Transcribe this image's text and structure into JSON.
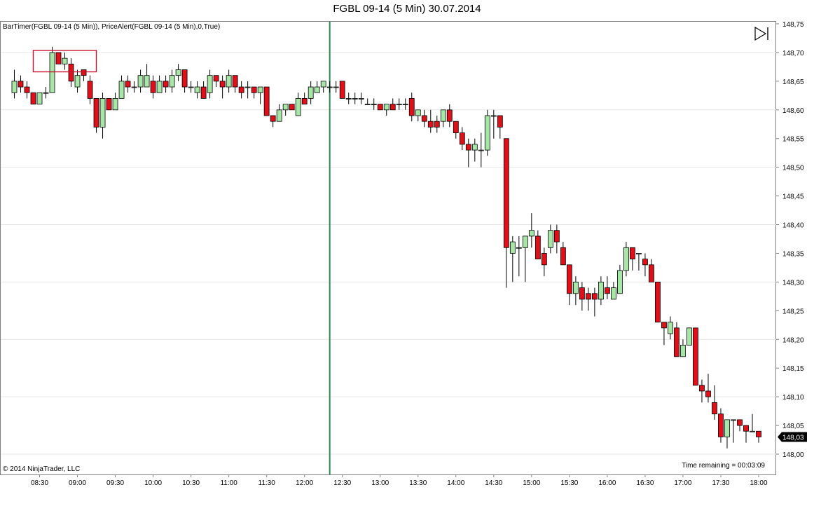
{
  "window": {
    "title": "FGBL 09-14 (5 Min)  30.07.2014",
    "indicators_label": "BarTimer(FGBL 09-14 (5 Min)), PriceAlert(FGBL 09-14 (5 Min),0,True)",
    "copyright": "© 2014 NinjaTrader, LLC",
    "time_remaining": "Time remaining = 00:03:09",
    "play_icon": "play-to-end-icon"
  },
  "colors": {
    "up_fill": "#a8e6a8",
    "down_fill": "#e0101a",
    "wick": "#000000",
    "grid": "#e6e6e6",
    "session_line": "#2e8b57",
    "alert_box": "#c8102e",
    "last_price_bg": "#000000"
  },
  "chart_data": {
    "type": "candlestick",
    "title": "FGBL 09-14 (5 Min)  30.07.2014",
    "x_axis": {
      "tick_labels": [
        "08:30",
        "09:00",
        "09:30",
        "10:00",
        "10:30",
        "11:00",
        "11:30",
        "12:00",
        "12:30",
        "13:00",
        "13:30",
        "14:00",
        "14:30",
        "15:00",
        "15:30",
        "16:00",
        "16:30",
        "17:00",
        "17:30",
        "18:00"
      ],
      "range": [
        "08:05",
        "18:10"
      ]
    },
    "y_axis": {
      "tick_labels": [
        "148,75",
        "148,70",
        "148,65",
        "148,60",
        "148,55",
        "148,50",
        "148,45",
        "148,40",
        "148,35",
        "148,30",
        "148,25",
        "148,20",
        "148,15",
        "148,10",
        "148,05",
        "148,00"
      ],
      "range": [
        147.99,
        148.755
      ],
      "position": "right",
      "grid": true
    },
    "last_price": "148,03",
    "session_line_time": "12:20",
    "alert_box_range": {
      "from": "08:30",
      "to": "09:10",
      "low": 148.67,
      "high": 148.7
    },
    "candles": [
      {
        "t": "08:10",
        "o": 148.63,
        "h": 148.67,
        "l": 148.62,
        "c": 148.65
      },
      {
        "t": "08:15",
        "o": 148.65,
        "h": 148.66,
        "l": 148.63,
        "c": 148.64
      },
      {
        "t": "08:20",
        "o": 148.64,
        "h": 148.65,
        "l": 148.62,
        "c": 148.63
      },
      {
        "t": "08:25",
        "o": 148.63,
        "h": 148.63,
        "l": 148.61,
        "c": 148.61
      },
      {
        "t": "08:30",
        "o": 148.61,
        "h": 148.63,
        "l": 148.61,
        "c": 148.63
      },
      {
        "t": "08:35",
        "o": 148.63,
        "h": 148.64,
        "l": 148.62,
        "c": 148.63
      },
      {
        "t": "08:40",
        "o": 148.63,
        "h": 148.71,
        "l": 148.63,
        "c": 148.7
      },
      {
        "t": "08:45",
        "o": 148.7,
        "h": 148.7,
        "l": 148.68,
        "c": 148.68
      },
      {
        "t": "08:50",
        "o": 148.68,
        "h": 148.7,
        "l": 148.67,
        "c": 148.69
      },
      {
        "t": "08:55",
        "o": 148.68,
        "h": 148.69,
        "l": 148.64,
        "c": 148.65
      },
      {
        "t": "09:00",
        "o": 148.64,
        "h": 148.67,
        "l": 148.63,
        "c": 148.66
      },
      {
        "t": "09:05",
        "o": 148.67,
        "h": 148.67,
        "l": 148.65,
        "c": 148.66
      },
      {
        "t": "09:10",
        "o": 148.65,
        "h": 148.66,
        "l": 148.61,
        "c": 148.62
      },
      {
        "t": "09:15",
        "o": 148.62,
        "h": 148.62,
        "l": 148.56,
        "c": 148.57
      },
      {
        "t": "09:20",
        "o": 148.57,
        "h": 148.63,
        "l": 148.55,
        "c": 148.62
      },
      {
        "t": "09:25",
        "o": 148.62,
        "h": 148.62,
        "l": 148.6,
        "c": 148.6
      },
      {
        "t": "09:30",
        "o": 148.6,
        "h": 148.63,
        "l": 148.6,
        "c": 148.62
      },
      {
        "t": "09:35",
        "o": 148.62,
        "h": 148.66,
        "l": 148.62,
        "c": 148.65
      },
      {
        "t": "09:40",
        "o": 148.65,
        "h": 148.66,
        "l": 148.63,
        "c": 148.64
      },
      {
        "t": "09:45",
        "o": 148.64,
        "h": 148.65,
        "l": 148.63,
        "c": 148.64
      },
      {
        "t": "09:50",
        "o": 148.64,
        "h": 148.67,
        "l": 148.63,
        "c": 148.66
      },
      {
        "t": "09:55",
        "o": 148.64,
        "h": 148.68,
        "l": 148.64,
        "c": 148.66
      },
      {
        "t": "10:00",
        "o": 148.65,
        "h": 148.66,
        "l": 148.62,
        "c": 148.63
      },
      {
        "t": "10:05",
        "o": 148.63,
        "h": 148.66,
        "l": 148.63,
        "c": 148.65
      },
      {
        "t": "10:10",
        "o": 148.65,
        "h": 148.66,
        "l": 148.63,
        "c": 148.64
      },
      {
        "t": "10:15",
        "o": 148.64,
        "h": 148.67,
        "l": 148.63,
        "c": 148.66
      },
      {
        "t": "10:20",
        "o": 148.66,
        "h": 148.68,
        "l": 148.65,
        "c": 148.67
      },
      {
        "t": "10:25",
        "o": 148.67,
        "h": 148.67,
        "l": 148.63,
        "c": 148.64
      },
      {
        "t": "10:30",
        "o": 148.64,
        "h": 148.65,
        "l": 148.63,
        "c": 148.64
      },
      {
        "t": "10:35",
        "o": 148.63,
        "h": 148.65,
        "l": 148.62,
        "c": 148.64
      },
      {
        "t": "10:40",
        "o": 148.64,
        "h": 148.65,
        "l": 148.62,
        "c": 148.62
      },
      {
        "t": "10:45",
        "o": 148.63,
        "h": 148.67,
        "l": 148.62,
        "c": 148.66
      },
      {
        "t": "10:50",
        "o": 148.66,
        "h": 148.66,
        "l": 148.64,
        "c": 148.65
      },
      {
        "t": "10:55",
        "o": 148.65,
        "h": 148.66,
        "l": 148.62,
        "c": 148.64
      },
      {
        "t": "11:00",
        "o": 148.64,
        "h": 148.67,
        "l": 148.63,
        "c": 148.66
      },
      {
        "t": "11:05",
        "o": 148.66,
        "h": 148.66,
        "l": 148.63,
        "c": 148.64
      },
      {
        "t": "11:10",
        "o": 148.64,
        "h": 148.65,
        "l": 148.62,
        "c": 148.63
      },
      {
        "t": "11:15",
        "o": 148.64,
        "h": 148.65,
        "l": 148.62,
        "c": 148.64
      },
      {
        "t": "11:20",
        "o": 148.64,
        "h": 148.64,
        "l": 148.62,
        "c": 148.63
      },
      {
        "t": "11:25",
        "o": 148.63,
        "h": 148.64,
        "l": 148.61,
        "c": 148.64
      },
      {
        "t": "11:30",
        "o": 148.64,
        "h": 148.64,
        "l": 148.59,
        "c": 148.59
      },
      {
        "t": "11:35",
        "o": 148.59,
        "h": 148.59,
        "l": 148.57,
        "c": 148.58
      },
      {
        "t": "11:40",
        "o": 148.58,
        "h": 148.61,
        "l": 148.58,
        "c": 148.6
      },
      {
        "t": "11:45",
        "o": 148.6,
        "h": 148.61,
        "l": 148.59,
        "c": 148.61
      },
      {
        "t": "11:50",
        "o": 148.61,
        "h": 148.61,
        "l": 148.6,
        "c": 148.6
      },
      {
        "t": "11:55",
        "o": 148.59,
        "h": 148.63,
        "l": 148.59,
        "c": 148.62
      },
      {
        "t": "12:00",
        "o": 148.62,
        "h": 148.63,
        "l": 148.61,
        "c": 148.61
      },
      {
        "t": "12:05",
        "o": 148.62,
        "h": 148.65,
        "l": 148.61,
        "c": 148.64
      },
      {
        "t": "12:10",
        "o": 148.63,
        "h": 148.65,
        "l": 148.63,
        "c": 148.64
      },
      {
        "t": "12:15",
        "o": 148.64,
        "h": 148.65,
        "l": 148.63,
        "c": 148.65
      },
      {
        "t": "12:20",
        "o": 148.64,
        "h": 148.65,
        "l": 148.63,
        "c": 148.64
      },
      {
        "t": "12:25",
        "o": 148.64,
        "h": 148.65,
        "l": 148.63,
        "c": 148.64
      },
      {
        "t": "12:30",
        "o": 148.65,
        "h": 148.65,
        "l": 148.62,
        "c": 148.62
      },
      {
        "t": "12:35",
        "o": 148.62,
        "h": 148.63,
        "l": 148.61,
        "c": 148.62
      },
      {
        "t": "12:40",
        "o": 148.62,
        "h": 148.63,
        "l": 148.61,
        "c": 148.62
      },
      {
        "t": "12:45",
        "o": 148.62,
        "h": 148.63,
        "l": 148.61,
        "c": 148.62
      },
      {
        "t": "12:50",
        "o": 148.61,
        "h": 148.62,
        "l": 148.61,
        "c": 148.61
      },
      {
        "t": "12:55",
        "o": 148.61,
        "h": 148.62,
        "l": 148.6,
        "c": 148.61
      },
      {
        "t": "13:00",
        "o": 148.61,
        "h": 148.61,
        "l": 148.6,
        "c": 148.6
      },
      {
        "t": "13:05",
        "o": 148.6,
        "h": 148.61,
        "l": 148.59,
        "c": 148.61
      },
      {
        "t": "13:10",
        "o": 148.61,
        "h": 148.62,
        "l": 148.6,
        "c": 148.6
      },
      {
        "t": "13:15",
        "o": 148.61,
        "h": 148.62,
        "l": 148.6,
        "c": 148.61
      },
      {
        "t": "13:20",
        "o": 148.61,
        "h": 148.62,
        "l": 148.6,
        "c": 148.61
      },
      {
        "t": "13:25",
        "o": 148.62,
        "h": 148.63,
        "l": 148.58,
        "c": 148.59
      },
      {
        "t": "13:30",
        "o": 148.59,
        "h": 148.6,
        "l": 148.58,
        "c": 148.6
      },
      {
        "t": "13:35",
        "o": 148.59,
        "h": 148.6,
        "l": 148.57,
        "c": 148.58
      },
      {
        "t": "13:40",
        "o": 148.58,
        "h": 148.6,
        "l": 148.56,
        "c": 148.57
      },
      {
        "t": "13:45",
        "o": 148.58,
        "h": 148.59,
        "l": 148.56,
        "c": 148.57
      },
      {
        "t": "13:50",
        "o": 148.58,
        "h": 148.6,
        "l": 148.57,
        "c": 148.6
      },
      {
        "t": "13:55",
        "o": 148.6,
        "h": 148.61,
        "l": 148.57,
        "c": 148.58
      },
      {
        "t": "14:00",
        "o": 148.58,
        "h": 148.58,
        "l": 148.55,
        "c": 148.56
      },
      {
        "t": "14:05",
        "o": 148.56,
        "h": 148.57,
        "l": 148.53,
        "c": 148.54
      },
      {
        "t": "14:10",
        "o": 148.54,
        "h": 148.55,
        "l": 148.5,
        "c": 148.53
      },
      {
        "t": "14:15",
        "o": 148.53,
        "h": 148.55,
        "l": 148.51,
        "c": 148.54
      },
      {
        "t": "14:20",
        "o": 148.53,
        "h": 148.56,
        "l": 148.5,
        "c": 148.53
      },
      {
        "t": "14:25",
        "o": 148.53,
        "h": 148.6,
        "l": 148.52,
        "c": 148.59
      },
      {
        "t": "14:30",
        "o": 148.59,
        "h": 148.6,
        "l": 148.55,
        "c": 148.59
      },
      {
        "t": "14:35",
        "o": 148.59,
        "h": 148.59,
        "l": 148.55,
        "c": 148.57
      },
      {
        "t": "14:40",
        "o": 148.55,
        "h": 148.55,
        "l": 148.29,
        "c": 148.36
      },
      {
        "t": "14:45",
        "o": 148.35,
        "h": 148.38,
        "l": 148.3,
        "c": 148.37
      },
      {
        "t": "14:50",
        "o": 148.36,
        "h": 148.38,
        "l": 148.31,
        "c": 148.36
      },
      {
        "t": "14:55",
        "o": 148.36,
        "h": 148.38,
        "l": 148.3,
        "c": 148.38
      },
      {
        "t": "15:00",
        "o": 148.38,
        "h": 148.42,
        "l": 148.36,
        "c": 148.39
      },
      {
        "t": "15:05",
        "o": 148.38,
        "h": 148.39,
        "l": 148.34,
        "c": 148.34
      },
      {
        "t": "15:10",
        "o": 148.35,
        "h": 148.36,
        "l": 148.31,
        "c": 148.33
      },
      {
        "t": "15:15",
        "o": 148.36,
        "h": 148.4,
        "l": 148.35,
        "c": 148.39
      },
      {
        "t": "15:20",
        "o": 148.39,
        "h": 148.4,
        "l": 148.35,
        "c": 148.37
      },
      {
        "t": "15:25",
        "o": 148.36,
        "h": 148.37,
        "l": 148.33,
        "c": 148.33
      },
      {
        "t": "15:30",
        "o": 148.33,
        "h": 148.33,
        "l": 148.26,
        "c": 148.28
      },
      {
        "t": "15:35",
        "o": 148.28,
        "h": 148.31,
        "l": 148.26,
        "c": 148.3
      },
      {
        "t": "15:40",
        "o": 148.29,
        "h": 148.3,
        "l": 148.25,
        "c": 148.27
      },
      {
        "t": "15:45",
        "o": 148.28,
        "h": 148.29,
        "l": 148.25,
        "c": 148.27
      },
      {
        "t": "15:50",
        "o": 148.28,
        "h": 148.29,
        "l": 148.24,
        "c": 148.27
      },
      {
        "t": "15:55",
        "o": 148.27,
        "h": 148.31,
        "l": 148.26,
        "c": 148.3
      },
      {
        "t": "16:00",
        "o": 148.29,
        "h": 148.31,
        "l": 148.27,
        "c": 148.28
      },
      {
        "t": "16:05",
        "o": 148.27,
        "h": 148.3,
        "l": 148.27,
        "c": 148.29
      },
      {
        "t": "16:10",
        "o": 148.28,
        "h": 148.33,
        "l": 148.28,
        "c": 148.32
      },
      {
        "t": "16:15",
        "o": 148.32,
        "h": 148.37,
        "l": 148.31,
        "c": 148.36
      },
      {
        "t": "16:20",
        "o": 148.36,
        "h": 148.36,
        "l": 148.32,
        "c": 148.34
      },
      {
        "t": "16:25",
        "o": 148.35,
        "h": 148.35,
        "l": 148.32,
        "c": 148.35
      },
      {
        "t": "16:30",
        "o": 148.34,
        "h": 148.35,
        "l": 148.31,
        "c": 148.33
      },
      {
        "t": "16:35",
        "o": 148.33,
        "h": 148.34,
        "l": 148.3,
        "c": 148.3
      },
      {
        "t": "16:40",
        "o": 148.3,
        "h": 148.3,
        "l": 148.23,
        "c": 148.23
      },
      {
        "t": "16:45",
        "o": 148.23,
        "h": 148.23,
        "l": 148.19,
        "c": 148.22
      },
      {
        "t": "16:50",
        "o": 148.21,
        "h": 148.24,
        "l": 148.2,
        "c": 148.23
      },
      {
        "t": "16:55",
        "o": 148.22,
        "h": 148.23,
        "l": 148.17,
        "c": 148.17
      },
      {
        "t": "17:00",
        "o": 148.17,
        "h": 148.2,
        "l": 148.17,
        "c": 148.19
      },
      {
        "t": "17:05",
        "o": 148.19,
        "h": 148.22,
        "l": 148.19,
        "c": 148.22
      },
      {
        "t": "17:10",
        "o": 148.22,
        "h": 148.22,
        "l": 148.12,
        "c": 148.12
      },
      {
        "t": "17:15",
        "o": 148.12,
        "h": 148.13,
        "l": 148.09,
        "c": 148.11
      },
      {
        "t": "17:20",
        "o": 148.11,
        "h": 148.14,
        "l": 148.09,
        "c": 148.1
      },
      {
        "t": "17:25",
        "o": 148.09,
        "h": 148.12,
        "l": 148.06,
        "c": 148.07
      },
      {
        "t": "17:30",
        "o": 148.07,
        "h": 148.08,
        "l": 148.02,
        "c": 148.03
      },
      {
        "t": "17:35",
        "o": 148.03,
        "h": 148.06,
        "l": 148.01,
        "c": 148.06
      },
      {
        "t": "17:40",
        "o": 148.06,
        "h": 148.06,
        "l": 148.02,
        "c": 148.06
      },
      {
        "t": "17:45",
        "o": 148.06,
        "h": 148.06,
        "l": 148.04,
        "c": 148.05
      },
      {
        "t": "17:50",
        "o": 148.05,
        "h": 148.05,
        "l": 148.02,
        "c": 148.04
      },
      {
        "t": "17:55",
        "o": 148.04,
        "h": 148.07,
        "l": 148.04,
        "c": 148.04
      },
      {
        "t": "18:00",
        "o": 148.04,
        "h": 148.04,
        "l": 148.02,
        "c": 148.03
      }
    ]
  }
}
